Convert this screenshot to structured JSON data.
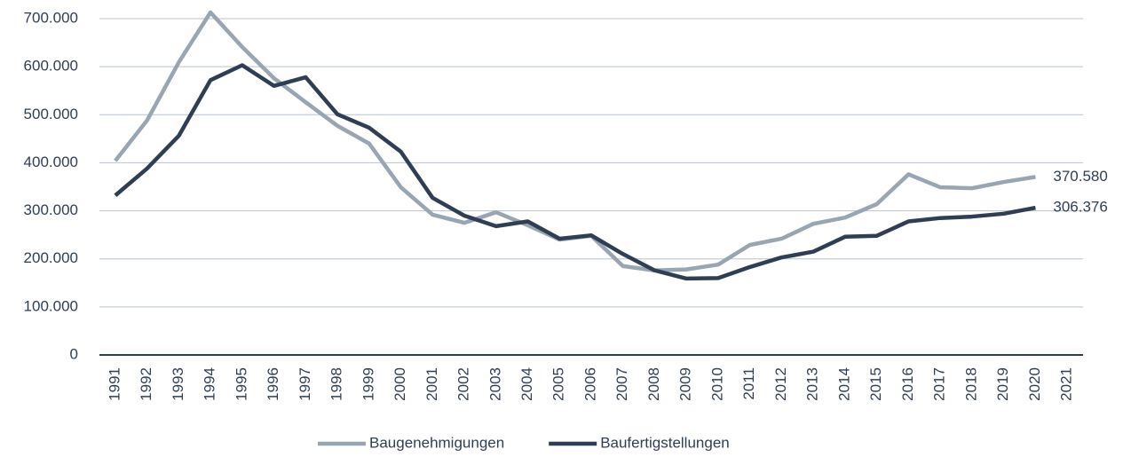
{
  "chart_data": {
    "type": "line",
    "categories": [
      "1991",
      "1992",
      "1993",
      "1994",
      "1995",
      "1996",
      "1997",
      "1998",
      "1999",
      "2000",
      "2001",
      "2002",
      "2003",
      "2004",
      "2005",
      "2006",
      "2007",
      "2008",
      "2009",
      "2010",
      "2011",
      "2012",
      "2013",
      "2014",
      "2015",
      "2016",
      "2017",
      "2018",
      "2019",
      "2020",
      "2021"
    ],
    "series": [
      {
        "name": "Baugenehmigungen",
        "color": "#98a5b3",
        "values": [
          404000,
          488000,
          609000,
          713000,
          641000,
          576000,
          526000,
          477000,
          440000,
          349000,
          292000,
          275000,
          297000,
          270000,
          240000,
          248000,
          185000,
          176000,
          178000,
          188000,
          229000,
          242000,
          273000,
          286000,
          314000,
          376000,
          349000,
          347000,
          360000,
          370580,
          null
        ],
        "value_labels": [
          null,
          null,
          null,
          null,
          null,
          null,
          null,
          null,
          null,
          null,
          null,
          null,
          null,
          null,
          null,
          null,
          null,
          null,
          null,
          null,
          null,
          null,
          null,
          null,
          null,
          null,
          null,
          null,
          null,
          "370.580",
          null
        ]
      },
      {
        "name": "Baufertigstellungen",
        "color": "#2e3f55",
        "values": [
          332000,
          388000,
          456000,
          572000,
          603000,
          560000,
          578000,
          501000,
          473000,
          423000,
          327000,
          290000,
          268000,
          278000,
          242000,
          249000,
          210000,
          176000,
          159000,
          160000,
          183000,
          203000,
          215000,
          246000,
          248000,
          278000,
          285000,
          288000,
          294000,
          306376,
          null
        ],
        "value_labels": [
          null,
          null,
          null,
          null,
          null,
          null,
          null,
          null,
          null,
          null,
          null,
          null,
          null,
          null,
          null,
          null,
          null,
          null,
          null,
          null,
          null,
          null,
          null,
          null,
          null,
          null,
          null,
          null,
          null,
          "306.376",
          null
        ]
      }
    ],
    "ylim": [
      0,
      700000
    ],
    "yticks": [
      0,
      {
        "value": 100000,
        "label": "100.000"
      },
      {
        "value": 200000,
        "label": "200.000"
      },
      {
        "value": 300000,
        "label": "300.000"
      },
      {
        "value": 400000,
        "label": "400.000"
      },
      {
        "value": 500000,
        "label": "500.000"
      },
      {
        "value": 600000,
        "label": "600.000"
      },
      {
        "value": 700000,
        "label": "700.000"
      }
    ],
    "grid": true,
    "legend": "bottom"
  }
}
